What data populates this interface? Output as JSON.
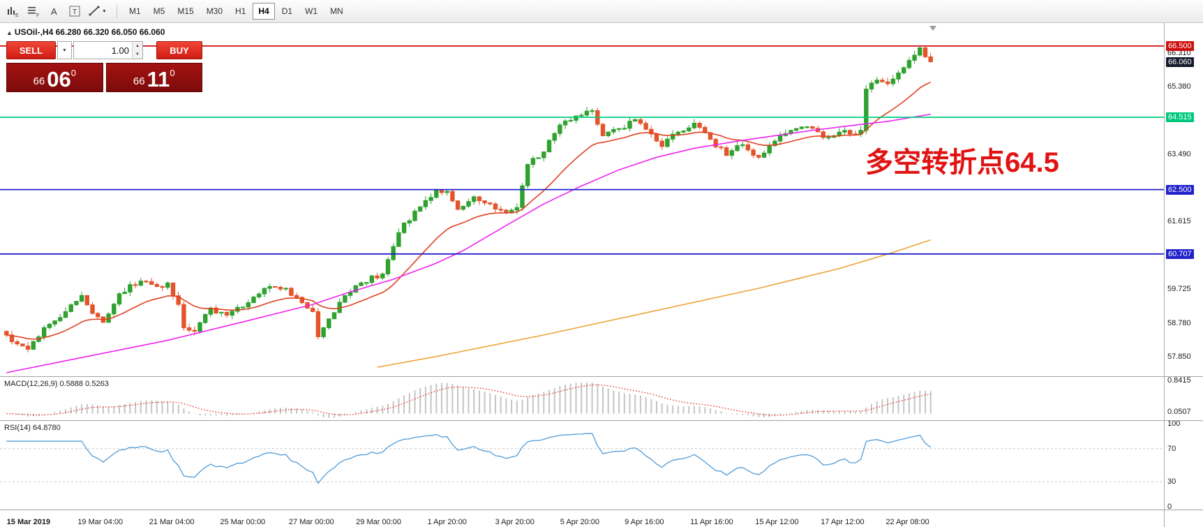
{
  "toolbar": {
    "timeframes": [
      "M1",
      "M5",
      "M15",
      "M30",
      "H1",
      "H4",
      "D1",
      "W1",
      "MN"
    ],
    "active_timeframe": "H4",
    "icon_glyphs": {
      "e": "E",
      "f": "F",
      "a": "A",
      "t": "T"
    }
  },
  "chart": {
    "header": "USOil-,H4  66.280 66.320 66.050 66.060"
  },
  "trade_panel": {
    "sell_label": "SELL",
    "buy_label": "BUY",
    "volume": "1.00",
    "bid": {
      "prefix": "66",
      "big": "06",
      "sup": "0"
    },
    "ask": {
      "prefix": "66",
      "big": "11",
      "sup": "0"
    }
  },
  "annotation": {
    "text": "多空转折点64.5",
    "color": "#e11212"
  },
  "indicators": {
    "macd_label": "MACD(12,26,9) 0.5888 0.5263",
    "rsi_label": "RSI(14) 64.8780"
  },
  "price_axis": {
    "tags": [
      {
        "text": "66.500",
        "price": 66.5,
        "type": "red"
      },
      {
        "text": "66.310",
        "price": 66.31,
        "type": "plain"
      },
      {
        "text": "66.060",
        "price": 66.06,
        "type": "dark"
      },
      {
        "text": "65.380",
        "price": 65.38,
        "type": "plain"
      },
      {
        "text": "64.515",
        "price": 64.515,
        "type": "green"
      },
      {
        "text": "63.490",
        "price": 63.49,
        "type": "plain"
      },
      {
        "text": "62.500",
        "price": 62.5,
        "type": "blue"
      },
      {
        "text": "61.615",
        "price": 61.615,
        "type": "plain"
      },
      {
        "text": "60.707",
        "price": 60.707,
        "type": "blue"
      },
      {
        "text": "59.725",
        "price": 59.725,
        "type": "plain"
      },
      {
        "text": "58.780",
        "price": 58.78,
        "type": "plain"
      },
      {
        "text": "57.850",
        "price": 57.85,
        "type": "plain"
      }
    ],
    "macd_labels": [
      {
        "text": "0.8415",
        "value": 0.8415
      },
      {
        "text": "0.0507",
        "value": 0.0507
      }
    ],
    "rsi_labels": [
      {
        "text": "100",
        "value": 100
      },
      {
        "text": "70",
        "value": 70
      },
      {
        "text": "30",
        "value": 30
      },
      {
        "text": "0",
        "value": 0
      }
    ]
  },
  "chart_data": {
    "type": "candlestick",
    "symbol": "USOil-",
    "timeframe": "H4",
    "ohlc_header": {
      "open": 66.28,
      "high": 66.32,
      "low": 66.05,
      "close": 66.06
    },
    "y_range": [
      57.3,
      67.14
    ],
    "x_ticks": [
      {
        "i": 0.4,
        "label": "15 Mar 2019"
      },
      {
        "i": 13.6,
        "label": "19 Mar 04:00"
      },
      {
        "i": 26.9,
        "label": "21 Mar 04:00"
      },
      {
        "i": 40.1,
        "label": "25 Mar 00:00"
      },
      {
        "i": 52.9,
        "label": "27 Mar 00:00"
      },
      {
        "i": 65.4,
        "label": "29 Mar 00:00"
      },
      {
        "i": 78.7,
        "label": "1 Apr 20:00"
      },
      {
        "i": 91.3,
        "label": "3 Apr 20:00"
      },
      {
        "i": 103.4,
        "label": "5 Apr 20:00"
      },
      {
        "i": 115.4,
        "label": "9 Apr 16:00"
      },
      {
        "i": 127.6,
        "label": "11 Apr 16:00"
      },
      {
        "i": 139.7,
        "label": "15 Apr 12:00"
      },
      {
        "i": 151.9,
        "label": "17 Apr 12:00"
      },
      {
        "i": 164,
        "label": "22 Apr 08:00"
      }
    ],
    "horizontal_lines": [
      {
        "price": 66.5,
        "color": "#cf0e0e"
      },
      {
        "price": 64.515,
        "color": "#00ce80"
      },
      {
        "price": 62.5,
        "color": "#2121cc"
      },
      {
        "price": 60.707,
        "color": "#2121cc"
      }
    ],
    "candles": {
      "count": 173,
      "first_open": 58.55,
      "up_color": "#2ea12e",
      "down_color": "#e4532a",
      "close_anchors": [
        [
          0,
          58.45
        ],
        [
          2,
          58.2
        ],
        [
          4,
          58.05
        ],
        [
          6,
          58.4
        ],
        [
          8,
          58.75
        ],
        [
          11,
          59.1
        ],
        [
          14,
          59.55
        ],
        [
          16,
          59.05
        ],
        [
          18,
          58.8
        ],
        [
          21,
          59.6
        ],
        [
          25,
          59.95
        ],
        [
          28,
          59.8
        ],
        [
          30,
          59.9
        ],
        [
          32,
          59.3
        ],
        [
          33,
          58.65
        ],
        [
          35,
          58.55
        ],
        [
          38,
          59.2
        ],
        [
          41,
          59.0
        ],
        [
          45,
          59.35
        ],
        [
          49,
          59.8
        ],
        [
          52,
          59.75
        ],
        [
          55,
          59.35
        ],
        [
          57,
          59.1
        ],
        [
          58,
          58.4
        ],
        [
          60,
          58.9
        ],
        [
          63,
          59.55
        ],
        [
          66,
          59.9
        ],
        [
          70,
          60.15
        ],
        [
          73,
          61.3
        ],
        [
          76,
          61.9
        ],
        [
          80,
          62.5
        ],
        [
          82,
          62.45
        ],
        [
          84,
          61.95
        ],
        [
          87,
          62.3
        ],
        [
          90,
          62.1
        ],
        [
          93,
          61.85
        ],
        [
          95,
          62.0
        ],
        [
          97,
          63.2
        ],
        [
          100,
          63.55
        ],
        [
          103,
          64.3
        ],
        [
          106,
          64.55
        ],
        [
          109,
          64.7
        ],
        [
          111,
          64.0
        ],
        [
          114,
          64.2
        ],
        [
          117,
          64.45
        ],
        [
          120,
          64.05
        ],
        [
          122,
          63.7
        ],
        [
          125,
          64.1
        ],
        [
          128,
          64.35
        ],
        [
          131,
          63.9
        ],
        [
          134,
          63.45
        ],
        [
          137,
          63.75
        ],
        [
          140,
          63.4
        ],
        [
          143,
          63.85
        ],
        [
          146,
          64.15
        ],
        [
          149,
          64.25
        ],
        [
          152,
          63.95
        ],
        [
          155,
          64.1
        ],
        [
          157,
          64.05
        ],
        [
          159,
          64.15
        ],
        [
          160,
          65.3
        ],
        [
          162,
          65.55
        ],
        [
          164,
          65.45
        ],
        [
          166,
          65.75
        ],
        [
          168,
          66.1
        ],
        [
          170,
          66.45
        ],
        [
          171,
          66.2
        ],
        [
          172,
          66.06
        ]
      ]
    },
    "moving_averages": [
      {
        "name": "fast-ma",
        "type": "ema",
        "period": 18,
        "color": "#e04020"
      },
      {
        "name": "medium-ma",
        "color": "#ee22ee",
        "anchors": [
          [
            0,
            57.4
          ],
          [
            15,
            57.85
          ],
          [
            30,
            58.3
          ],
          [
            45,
            58.85
          ],
          [
            57,
            59.3
          ],
          [
            64,
            59.65
          ],
          [
            72,
            60.0
          ],
          [
            80,
            60.45
          ],
          [
            85,
            60.8
          ],
          [
            93,
            61.5
          ],
          [
            100,
            62.1
          ],
          [
            107,
            62.6
          ],
          [
            114,
            63.05
          ],
          [
            121,
            63.4
          ],
          [
            128,
            63.65
          ],
          [
            136,
            63.85
          ],
          [
            143,
            64.0
          ],
          [
            150,
            64.15
          ],
          [
            157,
            64.28
          ],
          [
            164,
            64.4
          ],
          [
            172,
            64.6
          ]
        ]
      },
      {
        "name": "slow-ma",
        "color": "#eda437",
        "anchors": [
          [
            69,
            57.55
          ],
          [
            80,
            57.85
          ],
          [
            100,
            58.45
          ],
          [
            120,
            59.1
          ],
          [
            140,
            59.75
          ],
          [
            155,
            60.3
          ],
          [
            165,
            60.75
          ],
          [
            172,
            61.1
          ]
        ]
      }
    ],
    "macd": {
      "fast": 12,
      "slow": 26,
      "signal": 9,
      "current": [
        0.5888,
        0.5263
      ],
      "range": [
        -0.15,
        0.92
      ],
      "hist_color": "#c4c4c4",
      "signal_color": "#e02020"
    },
    "rsi": {
      "period": 14,
      "current": 64.878,
      "range": [
        0,
        100
      ],
      "levels": [
        70,
        30
      ],
      "color": "#4f9bd8"
    }
  }
}
